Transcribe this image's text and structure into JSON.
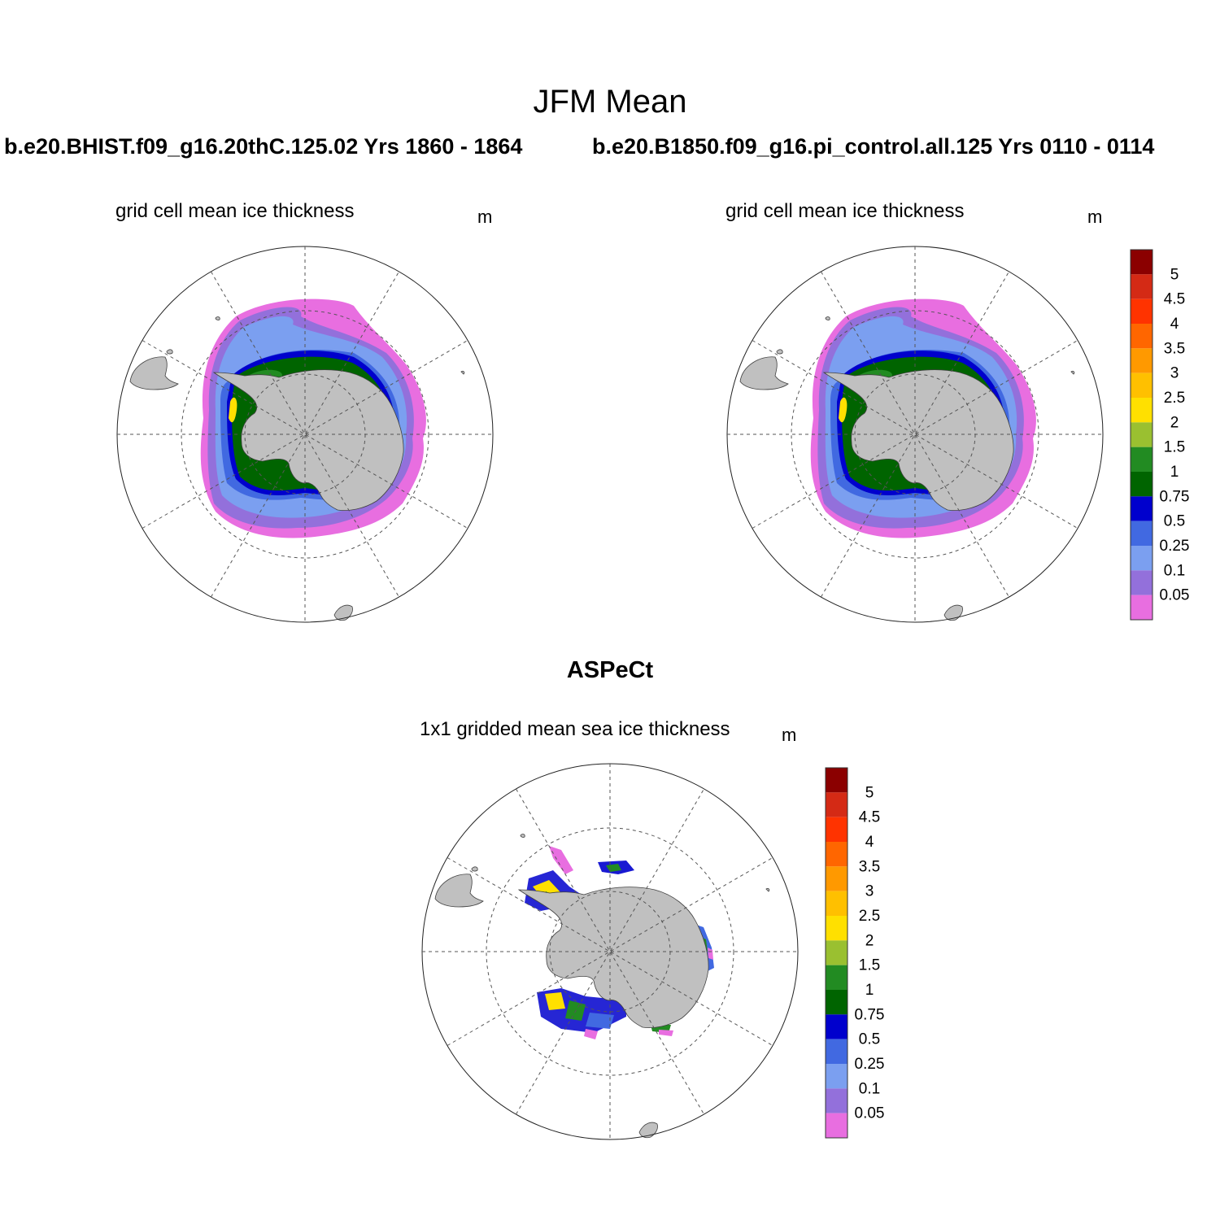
{
  "figure": {
    "title": "JFM Mean",
    "panels": [
      {
        "id": "model",
        "header": "b.e20.BHIST.f09_g16.20thC.125.02  Yrs 1860 - 1864",
        "variable": "grid cell mean ice thickness",
        "units": "m"
      },
      {
        "id": "control",
        "header": "b.e20.B1850.f09_g16.pi_control.all.125  Yrs 0110 - 0114",
        "variable": "grid cell mean ice thickness",
        "units": "m"
      },
      {
        "id": "observations",
        "header": "ASPeCt",
        "variable": "1x1 gridded mean sea ice thickness",
        "units": "m"
      }
    ]
  },
  "colorbar": {
    "labels": [
      "5",
      "4.5",
      "4",
      "3.5",
      "3",
      "2.5",
      "2",
      "1.5",
      "1",
      "0.75",
      "0.5",
      "0.25",
      "0.1",
      "0.05"
    ],
    "colors": [
      "#8b0000",
      "#d42a15",
      "#ff3300",
      "#ff6600",
      "#ff9900",
      "#ffc000",
      "#ffe000",
      "#9ac030",
      "#228b22",
      "#006400",
      "#0000cd",
      "#4169e1",
      "#7b9ff0",
      "#9370db",
      "#e86ee0"
    ]
  },
  "map_style": {
    "land_color": "#c0c0c0",
    "coast_color": "#404040",
    "grid_color": "#555555"
  },
  "chart_data": {
    "type": "heatmap",
    "projection": "south polar stereographic",
    "contour_levels_m": [
      0.05,
      0.1,
      0.25,
      0.5,
      0.75,
      1,
      1.5,
      2,
      2.5,
      3,
      3.5,
      4,
      4.5,
      5
    ],
    "panels": [
      "model",
      "control",
      "observations"
    ]
  }
}
